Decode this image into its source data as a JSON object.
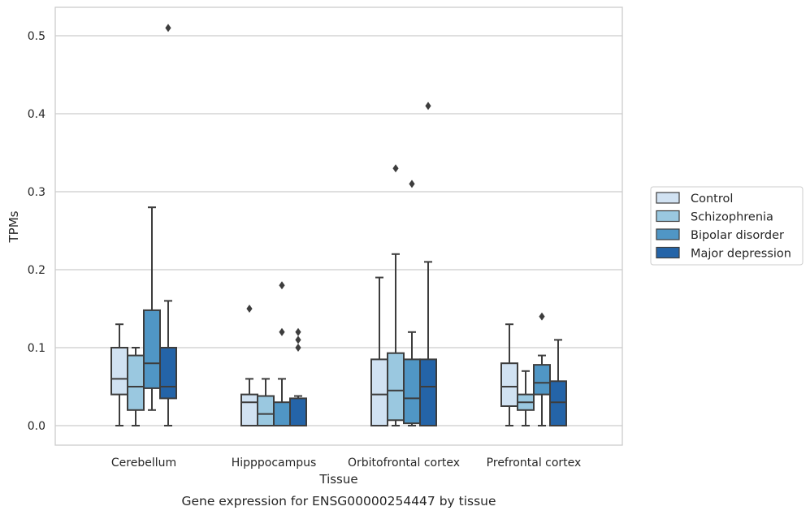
{
  "chart_data": {
    "type": "box",
    "title": "",
    "caption": "Gene expression for ENSG00000254447 by tissue",
    "xlabel": "Tissue",
    "ylabel": "TPMs",
    "ylim": [
      -0.025,
      0.537
    ],
    "yticks": [
      0.0,
      0.1,
      0.2,
      0.3,
      0.4,
      0.5
    ],
    "ytick_labels": [
      "0.0",
      "0.1",
      "0.2",
      "0.3",
      "0.4",
      "0.5"
    ],
    "grid": "horizontal",
    "legend_position": "right",
    "categories": [
      "Cerebellum",
      "Hipppocampus",
      "Orbitofrontal cortex",
      "Prefrontal cortex"
    ],
    "series": [
      {
        "name": "Control",
        "color": "#d1e2f2",
        "boxes": [
          {
            "whislo": 0.0,
            "q1": 0.04,
            "med": 0.06,
            "q3": 0.1,
            "whishi": 0.13,
            "fliers": []
          },
          {
            "whislo": 0.0,
            "q1": 0.0,
            "med": 0.03,
            "q3": 0.04,
            "whishi": 0.06,
            "fliers": [
              0.15
            ]
          },
          {
            "whislo": 0.0,
            "q1": 0.0,
            "med": 0.04,
            "q3": 0.085,
            "whishi": 0.19,
            "fliers": []
          },
          {
            "whislo": 0.0,
            "q1": 0.025,
            "med": 0.05,
            "q3": 0.08,
            "whishi": 0.13,
            "fliers": []
          }
        ]
      },
      {
        "name": "Schizophrenia",
        "color": "#9ac8e0",
        "boxes": [
          {
            "whislo": 0.0,
            "q1": 0.02,
            "med": 0.05,
            "q3": 0.09,
            "whishi": 0.1,
            "fliers": []
          },
          {
            "whislo": 0.0,
            "q1": 0.0,
            "med": 0.015,
            "q3": 0.038,
            "whishi": 0.06,
            "fliers": []
          },
          {
            "whislo": 0.0,
            "q1": 0.007,
            "med": 0.045,
            "q3": 0.093,
            "whishi": 0.22,
            "fliers": [
              0.33
            ]
          },
          {
            "whislo": 0.0,
            "q1": 0.02,
            "med": 0.03,
            "q3": 0.04,
            "whishi": 0.07,
            "fliers": []
          }
        ]
      },
      {
        "name": "Bipolar disorder",
        "color": "#5096c5",
        "boxes": [
          {
            "whislo": 0.02,
            "q1": 0.048,
            "med": 0.08,
            "q3": 0.148,
            "whishi": 0.28,
            "fliers": []
          },
          {
            "whislo": 0.0,
            "q1": 0.0,
            "med": 0.0,
            "q3": 0.03,
            "whishi": 0.06,
            "fliers": [
              0.12,
              0.18
            ]
          },
          {
            "whislo": 0.0,
            "q1": 0.003,
            "med": 0.035,
            "q3": 0.085,
            "whishi": 0.12,
            "fliers": [
              0.31
            ]
          },
          {
            "whislo": 0.0,
            "q1": 0.04,
            "med": 0.055,
            "q3": 0.078,
            "whishi": 0.09,
            "fliers": [
              0.14
            ]
          }
        ]
      },
      {
        "name": "Major depression",
        "color": "#2464a8",
        "boxes": [
          {
            "whislo": 0.0,
            "q1": 0.035,
            "med": 0.05,
            "q3": 0.1,
            "whishi": 0.16,
            "fliers": [
              0.51
            ]
          },
          {
            "whislo": 0.0,
            "q1": 0.0,
            "med": 0.0,
            "q3": 0.035,
            "whishi": 0.038,
            "fliers": [
              0.1,
              0.11,
              0.12
            ]
          },
          {
            "whislo": 0.0,
            "q1": 0.0,
            "med": 0.05,
            "q3": 0.085,
            "whishi": 0.21,
            "fliers": [
              0.41
            ]
          },
          {
            "whislo": 0.0,
            "q1": 0.0,
            "med": 0.03,
            "q3": 0.057,
            "whishi": 0.11,
            "fliers": []
          }
        ]
      }
    ]
  }
}
